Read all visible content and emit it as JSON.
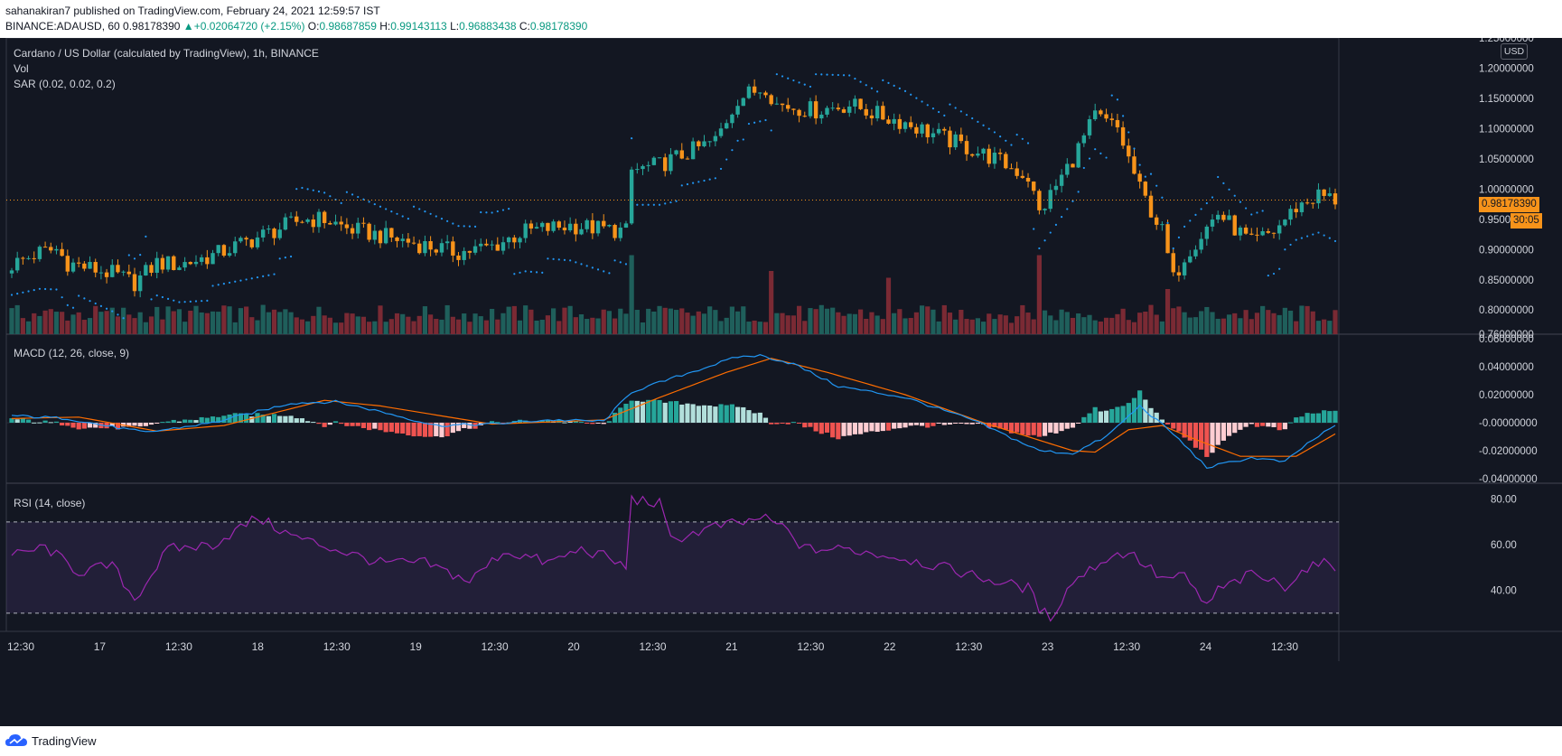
{
  "header": {
    "author_line": "sahanakiran7 published on TradingView.com, February 24, 2021 12:59:57 IST",
    "symbol": "BINANCE:ADAUSD, 60",
    "last": "0.98178390",
    "change": "+0.02064720 (+2.15%)",
    "o_label": "O:",
    "o_value": "0.98687859",
    "h_label": "H:",
    "h_value": "0.99143113",
    "l_label": "L:",
    "l_value": "0.96883438",
    "c_label": "C:",
    "c_value": "0.98178390"
  },
  "legend": {
    "title": "Cardano / US Dollar (calculated by TradingView), 1h, BINANCE",
    "vol": "Vol",
    "sar": "SAR (0.02, 0.02, 0.2)",
    "macd": "MACD (12, 26, close, 9)",
    "rsi": "RSI (14, close)"
  },
  "price_axis": {
    "currency": "USD",
    "current_price": "0.98178390",
    "countdown": "30:05"
  },
  "footer": {
    "brand": "TradingView"
  },
  "colors": {
    "background": "#131722",
    "up": "#26a69a",
    "down": "#f7931a",
    "sar": "#2196f3",
    "macd_line": "#2196f3",
    "signal_line": "#ff6d00",
    "rsi_line": "#9c27b0",
    "rsi_band": "#7e57c2"
  },
  "chart_data": [
    {
      "type": "candlestick",
      "title": "Cardano / US Dollar (calculated by TradingView), 1h, BINANCE",
      "ylim": [
        0.76,
        1.25
      ],
      "y_ticks": [
        "1.25000000",
        "1.20000000",
        "1.15000000",
        "1.10000000",
        "1.05000000",
        "1.00000000",
        "0.95000000",
        "0.90000000",
        "0.85000000",
        "0.80000000",
        "0.76000000"
      ],
      "x_tick_labels": [
        "12:30",
        "17",
        "12:30",
        "18",
        "12:30",
        "19",
        "12:30",
        "20",
        "12:30",
        "21",
        "12:30",
        "22",
        "12:30",
        "23",
        "12:30",
        "24",
        "12:30"
      ],
      "close_path": [
        [
          0,
          0.875
        ],
        [
          5,
          0.895
        ],
        [
          8,
          0.9
        ],
        [
          10,
          0.878
        ],
        [
          18,
          0.86
        ],
        [
          22,
          0.845
        ],
        [
          26,
          0.878
        ],
        [
          30,
          0.875
        ],
        [
          36,
          0.89
        ],
        [
          44,
          0.92
        ],
        [
          52,
          0.95
        ],
        [
          56,
          0.95
        ],
        [
          60,
          0.935
        ],
        [
          70,
          0.915
        ],
        [
          80,
          0.895
        ],
        [
          86,
          0.905
        ],
        [
          92,
          0.93
        ],
        [
          100,
          0.94
        ],
        [
          110,
          0.93
        ],
        [
          111,
          1.03
        ],
        [
          116,
          1.04
        ],
        [
          126,
          1.08
        ],
        [
          130,
          1.15
        ],
        [
          135,
          1.17
        ],
        [
          137,
          1.14
        ],
        [
          144,
          1.13
        ],
        [
          150,
          1.14
        ],
        [
          156,
          1.12
        ],
        [
          160,
          1.11
        ],
        [
          168,
          1.08
        ],
        [
          176,
          1.05
        ],
        [
          182,
          1.02
        ],
        [
          184,
          0.96
        ],
        [
          190,
          1.05
        ],
        [
          194,
          1.12
        ],
        [
          198,
          1.1
        ],
        [
          202,
          1.0
        ],
        [
          206,
          0.93
        ],
        [
          208,
          0.85
        ],
        [
          210,
          0.89
        ],
        [
          216,
          0.96
        ],
        [
          222,
          0.91
        ],
        [
          226,
          0.93
        ],
        [
          230,
          0.97
        ],
        [
          234,
          0.99
        ],
        [
          236,
          0.985
        ],
        [
          237,
          0.982
        ]
      ],
      "volume_spikes": [
        [
          111,
          0.0035
        ],
        [
          136,
          0.0028
        ],
        [
          157,
          0.0025
        ],
        [
          184,
          0.0035
        ],
        [
          207,
          0.002
        ]
      ],
      "sar_up_segments": [
        [
          0,
          20
        ],
        [
          25,
          50
        ],
        [
          90,
          110
        ],
        [
          112,
          136
        ],
        [
          183,
          196
        ],
        [
          225,
          237
        ]
      ],
      "last_price": 0.9817839,
      "countdown": "30:05"
    },
    {
      "type": "line",
      "title": "MACD (12, 26, close, 9)",
      "ylim": [
        -0.04,
        0.06
      ],
      "y_ticks": [
        "0.06000000",
        "0.04000000",
        "0.02000000",
        "-0.00000000",
        "-0.02000000",
        "-0.04000000"
      ],
      "macd_path": [
        [
          0,
          0.005
        ],
        [
          10,
          0.003
        ],
        [
          18,
          -0.003
        ],
        [
          24,
          -0.007
        ],
        [
          36,
          0.0
        ],
        [
          50,
          0.014
        ],
        [
          58,
          0.015
        ],
        [
          66,
          0.008
        ],
        [
          76,
          -0.002
        ],
        [
          86,
          -0.001
        ],
        [
          96,
          0.002
        ],
        [
          106,
          0.001
        ],
        [
          111,
          0.022
        ],
        [
          120,
          0.034
        ],
        [
          130,
          0.047
        ],
        [
          134,
          0.048
        ],
        [
          140,
          0.042
        ],
        [
          148,
          0.026
        ],
        [
          160,
          0.018
        ],
        [
          172,
          0.002
        ],
        [
          184,
          -0.02
        ],
        [
          190,
          -0.022
        ],
        [
          196,
          -0.01
        ],
        [
          202,
          0.012
        ],
        [
          208,
          -0.008
        ],
        [
          214,
          -0.032
        ],
        [
          222,
          -0.025
        ],
        [
          228,
          -0.028
        ],
        [
          232,
          -0.015
        ],
        [
          237,
          -0.002
        ]
      ],
      "signal_path": [
        [
          0,
          0.003
        ],
        [
          12,
          0.004
        ],
        [
          26,
          -0.006
        ],
        [
          38,
          -0.002
        ],
        [
          56,
          0.016
        ],
        [
          66,
          0.012
        ],
        [
          86,
          -0.001
        ],
        [
          106,
          0.002
        ],
        [
          116,
          0.018
        ],
        [
          128,
          0.036
        ],
        [
          136,
          0.046
        ],
        [
          146,
          0.036
        ],
        [
          160,
          0.02
        ],
        [
          174,
          0.0
        ],
        [
          190,
          -0.02
        ],
        [
          194,
          -0.021
        ],
        [
          200,
          -0.005
        ],
        [
          206,
          -0.002
        ],
        [
          212,
          -0.012
        ],
        [
          220,
          -0.024
        ],
        [
          230,
          -0.024
        ],
        [
          237,
          -0.008
        ]
      ]
    },
    {
      "type": "line",
      "title": "RSI (14, close)",
      "ylim": [
        22,
        87
      ],
      "y_ticks": [
        "80.00",
        "60.00",
        "40.00"
      ],
      "band": [
        30,
        70
      ],
      "rsi_path": [
        [
          0,
          55
        ],
        [
          6,
          59
        ],
        [
          12,
          48
        ],
        [
          18,
          51
        ],
        [
          22,
          36
        ],
        [
          28,
          58
        ],
        [
          36,
          60
        ],
        [
          44,
          72
        ],
        [
          50,
          64
        ],
        [
          58,
          58
        ],
        [
          66,
          52
        ],
        [
          74,
          52
        ],
        [
          82,
          44
        ],
        [
          88,
          57
        ],
        [
          92,
          55
        ],
        [
          96,
          52
        ],
        [
          102,
          58
        ],
        [
          106,
          55
        ],
        [
          110,
          50
        ],
        [
          111,
          80
        ],
        [
          116,
          78
        ],
        [
          118,
          62
        ],
        [
          126,
          68
        ],
        [
          132,
          70
        ],
        [
          134,
          72
        ],
        [
          138,
          68
        ],
        [
          142,
          58
        ],
        [
          150,
          58
        ],
        [
          160,
          54
        ],
        [
          170,
          48
        ],
        [
          176,
          44
        ],
        [
          182,
          41
        ],
        [
          184,
          32
        ],
        [
          186,
          28
        ],
        [
          190,
          44
        ],
        [
          196,
          54
        ],
        [
          200,
          57
        ],
        [
          206,
          45
        ],
        [
          210,
          46
        ],
        [
          214,
          33
        ],
        [
          216,
          40
        ],
        [
          222,
          47
        ],
        [
          228,
          42
        ],
        [
          232,
          50
        ],
        [
          236,
          52
        ],
        [
          237,
          51
        ]
      ]
    }
  ]
}
